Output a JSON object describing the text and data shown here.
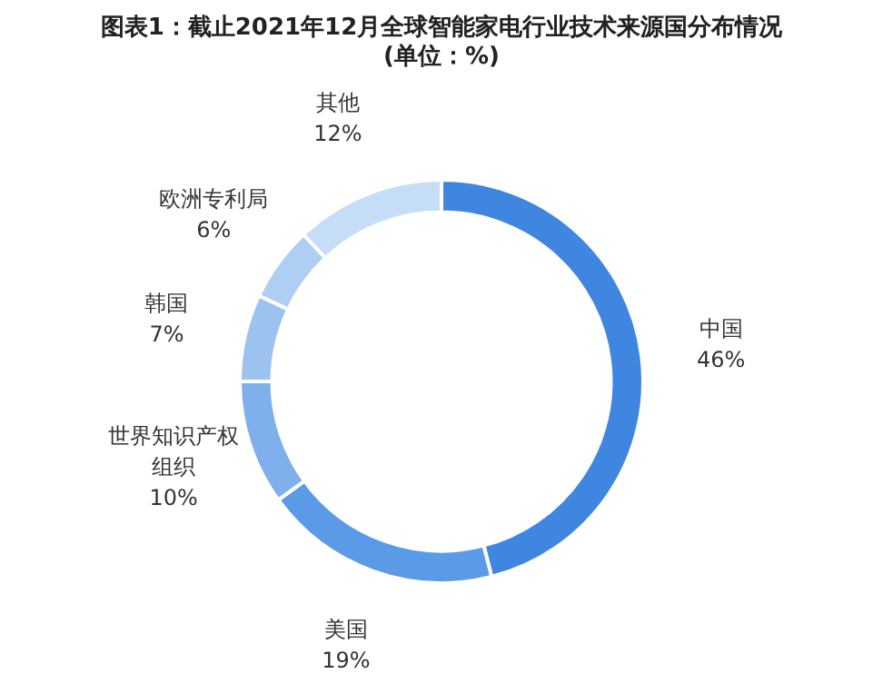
{
  "chart_data": {
    "type": "donut",
    "title": "图表1：截止2021年12月全球智能家电行业技术来源国分布情况(单位：%)",
    "categories": [
      "中国",
      "美国",
      "世界知识产权组织",
      "韩国",
      "欧洲专利局",
      "其他"
    ],
    "values": [
      46,
      19,
      10,
      7,
      6,
      12
    ],
    "value_labels": [
      "46%",
      "19%",
      "10%",
      "7%",
      "6%",
      "12%"
    ],
    "colors": [
      "#3f86e0",
      "#5b9ae6",
      "#7fb0ec",
      "#9cc2f0",
      "#afcef3",
      "#c6ddf7"
    ],
    "legend": false
  }
}
